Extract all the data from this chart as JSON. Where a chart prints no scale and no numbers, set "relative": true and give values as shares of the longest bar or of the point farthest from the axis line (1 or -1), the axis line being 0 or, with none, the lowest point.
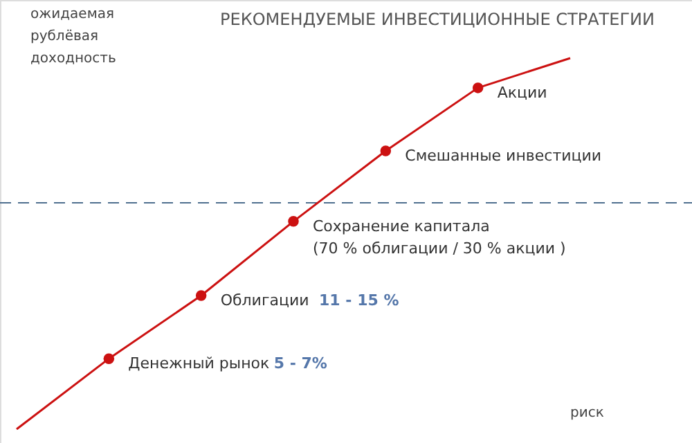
{
  "chart_data": {
    "type": "line",
    "relative": true,
    "title": "РЕКОМЕНДУЕМЫЕ ИНВЕСТИЦИОННЫЕ СТРАТЕГИИ",
    "xlabel": "риск",
    "ylabel": "ожидаемая рублёвая доходность",
    "categories": [
      null,
      null,
      null,
      null,
      null,
      null,
      null
    ],
    "series": [
      {
        "color": "#cc1111",
        "values": [
          0,
          0.19,
          0.36,
          0.56,
          0.75,
          0.92,
          1.0
        ]
      }
    ],
    "marker": "circle",
    "line_style": "solid",
    "ref_lines": [
      {
        "axis": "y",
        "value": 0.61,
        "color": "#4f6f8f",
        "line_style": "dashed"
      }
    ],
    "annotations": [
      "Денежный рынок",
      "Облигации",
      "Сохранение капитала",
      "Смешанные инвестиции",
      "Акции",
      "5 - 7%",
      "11 - 15 %",
      "(70 % облигации  /  30 % акции )"
    ]
  }
}
